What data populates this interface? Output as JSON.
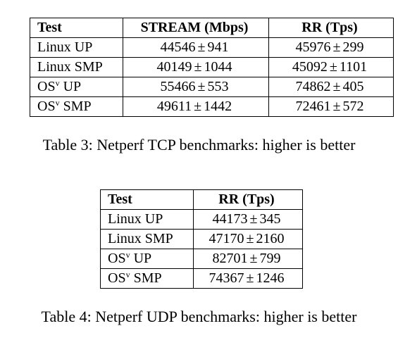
{
  "tcp_table": {
    "headers": [
      "Test",
      "STREAM (Mbps)",
      "RR (Tps)"
    ],
    "rows": [
      {
        "test": "Linux UP",
        "test_sup": "",
        "test_suffix": "",
        "stream": "44546",
        "stream_err": "941",
        "rr": "45976",
        "rr_err": "299"
      },
      {
        "test": "Linux SMP",
        "test_sup": "",
        "test_suffix": "",
        "stream": "40149",
        "stream_err": "1044",
        "rr": "45092",
        "rr_err": "1101"
      },
      {
        "test": "OS",
        "test_sup": "v",
        "test_suffix": " UP",
        "stream": "55466",
        "stream_err": "553",
        "rr": "74862",
        "rr_err": "405"
      },
      {
        "test": "OS",
        "test_sup": "v",
        "test_suffix": " SMP",
        "stream": "49611",
        "stream_err": "1442",
        "rr": "72461",
        "rr_err": "572"
      }
    ],
    "caption": "Table 3: Netperf TCP benchmarks: higher is better"
  },
  "udp_table": {
    "headers": [
      "Test",
      "RR (Tps)"
    ],
    "rows": [
      {
        "test": "Linux UP",
        "test_sup": "",
        "test_suffix": "",
        "rr": "44173",
        "rr_err": "345"
      },
      {
        "test": "Linux SMP",
        "test_sup": "",
        "test_suffix": "",
        "rr": "47170",
        "rr_err": "2160"
      },
      {
        "test": "OS",
        "test_sup": "v",
        "test_suffix": " UP",
        "rr": "82701",
        "rr_err": "799"
      },
      {
        "test": "OS",
        "test_sup": "v",
        "test_suffix": " SMP",
        "rr": "74367",
        "rr_err": "1246"
      }
    ],
    "caption": "Table 4: Netperf UDP benchmarks: higher is better"
  },
  "symbols": {
    "plus_minus": "±"
  }
}
